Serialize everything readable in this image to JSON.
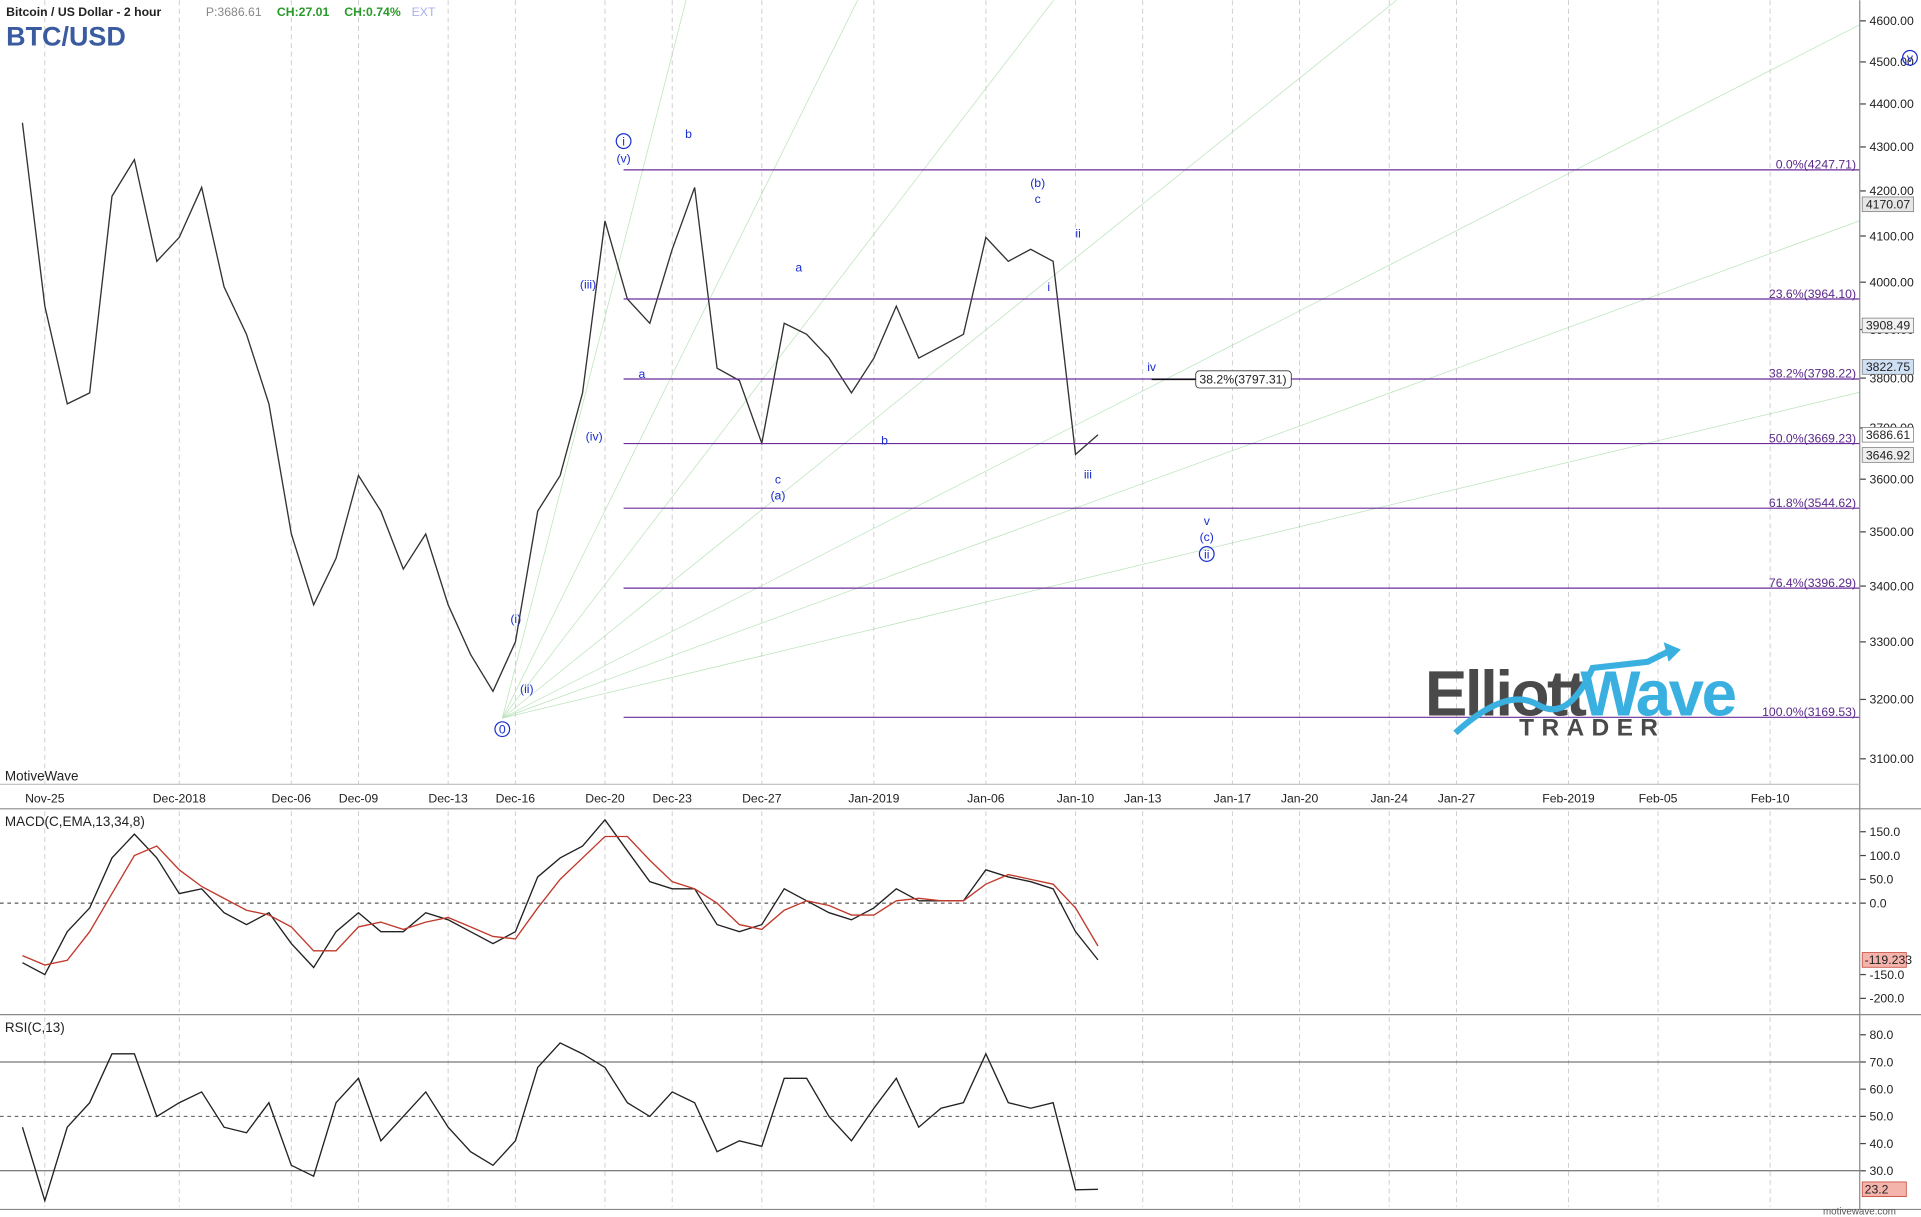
{
  "header": {
    "title": "Bitcoin / US Dollar - 2 hour",
    "price": "P:3686.61",
    "change": "CH:27.01",
    "change_pct": "CH:0.74%",
    "ext": "EXT",
    "symbol": "BTC/USD",
    "platform": "MotiveWave",
    "footer": "motivewave.com"
  },
  "logo": {
    "part1": "Elliott",
    "part2": "Wave",
    "sub": "TRADER"
  },
  "chart_data": [
    {
      "type": "line",
      "log": true,
      "x": [
        "2018-11-24",
        "2018-11-25",
        "2018-11-26",
        "2018-11-27",
        "2018-11-28",
        "2018-11-29",
        "2018-11-30",
        "2018-12-01",
        "2018-12-02",
        "2018-12-03",
        "2018-12-04",
        "2018-12-05",
        "2018-12-06",
        "2018-12-07",
        "2018-12-08",
        "2018-12-09",
        "2018-12-10",
        "2018-12-11",
        "2018-12-12",
        "2018-12-13",
        "2018-12-14",
        "2018-12-15",
        "2018-12-16",
        "2018-12-17",
        "2018-12-18",
        "2018-12-19",
        "2018-12-20",
        "2018-12-21",
        "2018-12-22",
        "2018-12-23",
        "2018-12-24",
        "2018-12-25",
        "2018-12-26",
        "2018-12-27",
        "2018-12-28",
        "2018-12-29",
        "2018-12-30",
        "2018-12-31",
        "2019-01-01",
        "2019-01-02",
        "2019-01-03",
        "2019-01-04",
        "2019-01-05",
        "2019-01-06",
        "2019-01-07",
        "2019-01-08",
        "2019-01-09",
        "2019-01-10",
        "2019-01-11"
      ],
      "series": [
        {
          "name": "BTC/USD",
          "color": "#333333",
          "values": [
            4356,
            3949,
            3748,
            3770,
            4188,
            4271,
            4045,
            4097,
            4208,
            3990,
            3890,
            3748,
            3496,
            3366,
            3451,
            3607,
            3539,
            3431,
            3496,
            3366,
            3278,
            3214,
            3300,
            3539,
            3607,
            3770,
            4133,
            3964,
            3913,
            4071,
            4208,
            3820,
            3795,
            3670,
            3913,
            3890,
            3841,
            3770,
            3841,
            3949,
            3841,
            3865,
            3890,
            4097,
            4045,
            4071,
            4045,
            3648,
            3686.61
          ]
        }
      ],
      "xlim": [
        "2018-11-23",
        "2019-02-14"
      ],
      "xticks": [
        {
          "value": "2018-11-25",
          "label": "Nov-25"
        },
        {
          "value": "2018-12-01",
          "label": "Dec-2018"
        },
        {
          "value": "2018-12-06",
          "label": "Dec-06"
        },
        {
          "value": "2018-12-09",
          "label": "Dec-09"
        },
        {
          "value": "2018-12-13",
          "label": "Dec-13"
        },
        {
          "value": "2018-12-16",
          "label": "Dec-16"
        },
        {
          "value": "2018-12-20",
          "label": "Dec-20"
        },
        {
          "value": "2018-12-23",
          "label": "Dec-23"
        },
        {
          "value": "2018-12-27",
          "label": "Dec-27"
        },
        {
          "value": "2019-01-01",
          "label": "Jan-2019"
        },
        {
          "value": "2019-01-06",
          "label": "Jan-06"
        },
        {
          "value": "2019-01-10",
          "label": "Jan-10"
        },
        {
          "value": "2019-01-13",
          "label": "Jan-13"
        },
        {
          "value": "2019-01-17",
          "label": "Jan-17"
        },
        {
          "value": "2019-01-20",
          "label": "Jan-20"
        },
        {
          "value": "2019-01-24",
          "label": "Jan-24"
        },
        {
          "value": "2019-01-27",
          "label": "Jan-27"
        },
        {
          "value": "2019-02-01",
          "label": "Feb-2019"
        },
        {
          "value": "2019-02-05",
          "label": "Feb-05"
        },
        {
          "value": "2019-02-10",
          "label": "Feb-10"
        }
      ],
      "ylim": [
        3058,
        4651
      ],
      "yticks": [
        {
          "value": 3100,
          "label": "3100.00"
        },
        {
          "value": 3200,
          "label": "3200.00"
        },
        {
          "value": 3300,
          "label": "3300.00"
        },
        {
          "value": 3400,
          "label": "3400.00"
        },
        {
          "value": 3500,
          "label": "3500.00"
        },
        {
          "value": 3600,
          "label": "3600.00"
        },
        {
          "value": 3700,
          "label": "3700.00"
        },
        {
          "value": 3800,
          "label": "3800.00"
        },
        {
          "value": 3900,
          "label": "3900.00"
        },
        {
          "value": 4000,
          "label": "4000.00"
        },
        {
          "value": 4100,
          "label": "4100.00"
        },
        {
          "value": 4200,
          "label": "4200.00"
        },
        {
          "value": 4300,
          "label": "4300.00"
        },
        {
          "value": 4400,
          "label": "4400.00"
        },
        {
          "value": 4500,
          "label": "4500.00"
        },
        {
          "value": 4600,
          "label": "4600.00"
        }
      ],
      "fib_color": "#6a2c9a",
      "fib_levels": [
        {
          "value": 4247.71,
          "label": "0.0%(4247.71)"
        },
        {
          "value": 3964.1,
          "label": "23.6%(3964.10)"
        },
        {
          "value": 3798.22,
          "label": "38.2%(3798.22)"
        },
        {
          "value": 3669.23,
          "label": "50.0%(3669.23)"
        },
        {
          "value": 3544.62,
          "label": "61.8%(3544.62)"
        },
        {
          "value": 3396.29,
          "label": "76.4%(3396.29)"
        },
        {
          "value": 3169.53,
          "label": "100.0%(3169.53)"
        }
      ],
      "annotation": {
        "value": 3797.31,
        "label": "38.2%(3797.31)"
      },
      "price_markers": [
        4170.07,
        3908.49,
        3822.75,
        3686.61,
        3646.92
      ],
      "wave_labels": [
        "0",
        "(i)",
        "(ii)",
        "(iii)",
        "(iv)",
        "(v)",
        "i",
        "a",
        "b",
        "c",
        "(a)",
        "a",
        "b",
        "(b)",
        "c",
        "i",
        "ii",
        "iii",
        "iv",
        "v",
        "(c)",
        "ii",
        "v"
      ]
    },
    {
      "type": "line",
      "title": "MACD(C,EMA,13,34,8)",
      "x": [
        "2018-11-24",
        "2018-11-25",
        "2018-11-26",
        "2018-11-27",
        "2018-11-28",
        "2018-11-29",
        "2018-11-30",
        "2018-12-01",
        "2018-12-02",
        "2018-12-03",
        "2018-12-04",
        "2018-12-05",
        "2018-12-06",
        "2018-12-07",
        "2018-12-08",
        "2018-12-09",
        "2018-12-10",
        "2018-12-11",
        "2018-12-12",
        "2018-12-13",
        "2018-12-14",
        "2018-12-15",
        "2018-12-16",
        "2018-12-17",
        "2018-12-18",
        "2018-12-19",
        "2018-12-20",
        "2018-12-21",
        "2018-12-22",
        "2018-12-23",
        "2018-12-24",
        "2018-12-25",
        "2018-12-26",
        "2018-12-27",
        "2018-12-28",
        "2018-12-29",
        "2018-12-30",
        "2018-12-31",
        "2019-01-01",
        "2019-01-02",
        "2019-01-03",
        "2019-01-04",
        "2019-01-05",
        "2019-01-06",
        "2019-01-07",
        "2019-01-08",
        "2019-01-09",
        "2019-01-10",
        "2019-01-11"
      ],
      "series": [
        {
          "name": "MACD",
          "color": "#222222",
          "values": [
            -125,
            -150,
            -60,
            -10,
            95,
            145,
            95,
            20,
            30,
            -20,
            -45,
            -20,
            -85,
            -135,
            -60,
            -20,
            -60,
            -60,
            -20,
            -35,
            -60,
            -85,
            -60,
            55,
            95,
            120,
            175,
            110,
            45,
            30,
            30,
            -45,
            -60,
            -45,
            30,
            5,
            -20,
            -35,
            -10,
            30,
            5,
            5,
            5,
            70,
            55,
            45,
            30,
            -60,
            -119.233
          ]
        },
        {
          "name": "Signal",
          "color": "#c0392b",
          "values": [
            -110,
            -130,
            -120,
            -60,
            20,
            100,
            120,
            70,
            35,
            10,
            -15,
            -25,
            -50,
            -100,
            -100,
            -50,
            -40,
            -55,
            -40,
            -30,
            -50,
            -70,
            -75,
            -10,
            50,
            95,
            140,
            140,
            90,
            45,
            30,
            0,
            -45,
            -55,
            -15,
            5,
            -5,
            -25,
            -25,
            5,
            10,
            5,
            5,
            40,
            60,
            50,
            40,
            -10,
            -90
          ]
        }
      ],
      "ylim": [
        -229,
        193
      ],
      "yticks": [
        {
          "value": 150,
          "label": "150.0"
        },
        {
          "value": 100,
          "label": "100.0"
        },
        {
          "value": 50,
          "label": "50.0"
        },
        {
          "value": 0,
          "label": "0.0"
        },
        {
          "value": -150,
          "label": "-150.0"
        },
        {
          "value": -200,
          "label": "-200.0"
        }
      ],
      "last_marker": -119.233
    },
    {
      "type": "line",
      "title": "RSI(C,13)",
      "x": [
        "2018-11-24",
        "2018-11-25",
        "2018-11-26",
        "2018-11-27",
        "2018-11-28",
        "2018-11-29",
        "2018-11-30",
        "2018-12-01",
        "2018-12-02",
        "2018-12-03",
        "2018-12-04",
        "2018-12-05",
        "2018-12-06",
        "2018-12-07",
        "2018-12-08",
        "2018-12-09",
        "2018-12-10",
        "2018-12-11",
        "2018-12-12",
        "2018-12-13",
        "2018-12-14",
        "2018-12-15",
        "2018-12-16",
        "2018-12-17",
        "2018-12-18",
        "2018-12-19",
        "2018-12-20",
        "2018-12-21",
        "2018-12-22",
        "2018-12-23",
        "2018-12-24",
        "2018-12-25",
        "2018-12-26",
        "2018-12-27",
        "2018-12-28",
        "2018-12-29",
        "2018-12-30",
        "2018-12-31",
        "2019-01-01",
        "2019-01-02",
        "2019-01-03",
        "2019-01-04",
        "2019-01-05",
        "2019-01-06",
        "2019-01-07",
        "2019-01-08",
        "2019-01-09",
        "2019-01-10",
        "2019-01-11"
      ],
      "series": [
        {
          "name": "RSI",
          "color": "#222222",
          "values": [
            46,
            19,
            46,
            55,
            73,
            73,
            50,
            55,
            59,
            46,
            44,
            55,
            32,
            28,
            55,
            64,
            41,
            50,
            59,
            46,
            37,
            32,
            41,
            68,
            77,
            73,
            68,
            55,
            50,
            59,
            55,
            37,
            41,
            39,
            64,
            64,
            50,
            41,
            53,
            64,
            46,
            53,
            55,
            73,
            55,
            53,
            55,
            23,
            23.2
          ]
        }
      ],
      "ylim": [
        16.7,
        86.5
      ],
      "yticks": [
        {
          "value": 80,
          "label": "80.0"
        },
        {
          "value": 70,
          "label": "70.0"
        },
        {
          "value": 60,
          "label": "60.0"
        },
        {
          "value": 50,
          "label": "50.0"
        },
        {
          "value": 40,
          "label": "40.0"
        },
        {
          "value": 30,
          "label": "30.0"
        }
      ],
      "levels": [
        70,
        50,
        30
      ],
      "last_marker": 23.2
    }
  ]
}
